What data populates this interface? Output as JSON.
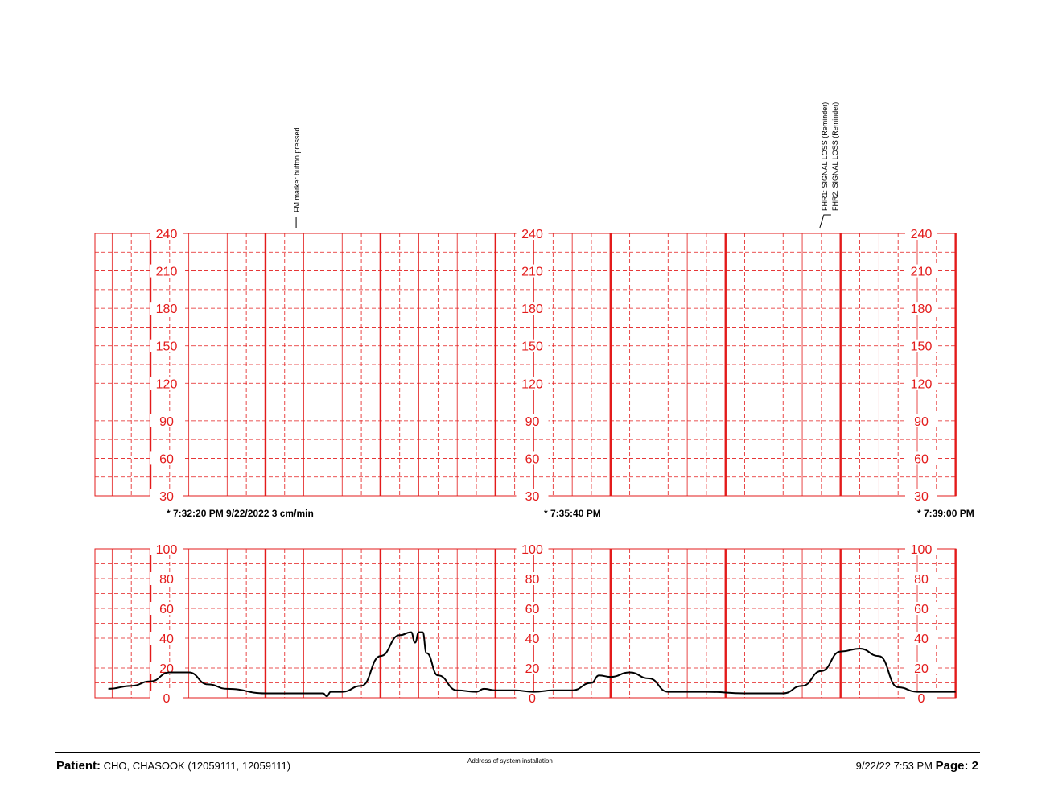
{
  "annotations": [
    {
      "text": "FM marker button pressed",
      "time": "7:33:36 PM"
    },
    {
      "text": "FHR1: SIGNAL LOSS (Reminder)",
      "time": "7:38:10 PM"
    },
    {
      "text": "FHR2: SIGNAL LOSS (Reminder)",
      "time": "7:38:10 PM"
    }
  ],
  "time_labels": [
    "* 7:32:20 PM  9/22/2022  3 cm/min",
    "* 7:35:40 PM",
    "* 7:39:00 PM"
  ],
  "footer": {
    "patient_label": "Patient:",
    "patient_value": "CHO, CHASOOK  (12059111, 12059111)",
    "address": "Address of system installation",
    "printed": "9/22/22 7:53 PM",
    "page_label": "Page: 2"
  },
  "colors": {
    "grid": "#e31b1b",
    "trace": "#000000",
    "text": "#000000"
  },
  "chart_data": [
    {
      "type": "line",
      "name": "fetal-heart-rate",
      "x_range": [
        "7:32:20 PM",
        "7:39:00 PM"
      ],
      "ylim": [
        30,
        240
      ],
      "yticks": [
        30,
        60,
        90,
        120,
        150,
        180,
        210,
        240
      ],
      "grid": true,
      "series": []
    },
    {
      "type": "line",
      "name": "uterine-activity",
      "x_range": [
        "7:32:20 PM",
        "7:39:00 PM"
      ],
      "ylim": [
        0,
        100
      ],
      "yticks": [
        0,
        20,
        40,
        60,
        80,
        100
      ],
      "grid": true,
      "series": [
        {
          "x": [
            "7:31:58 PM",
            "7:32:10 PM",
            "7:32:20 PM",
            "7:32:30 PM",
            "7:32:40 PM",
            "7:32:50 PM",
            "7:33:00 PM",
            "7:33:20 PM",
            "7:33:30 PM",
            "7:33:40 PM",
            "7:33:50 PM",
            "7:33:52 PM",
            "7:33:54 PM",
            "7:34:00 PM",
            "7:34:10 PM",
            "7:34:20 PM",
            "7:34:30 PM",
            "7:34:36 PM",
            "7:34:38 PM",
            "7:34:40 PM",
            "7:34:42 PM",
            "7:34:44 PM",
            "7:34:50 PM",
            "7:35:00 PM",
            "7:35:10 PM",
            "7:35:14 PM",
            "7:35:20 PM",
            "7:35:30 PM",
            "7:35:40 PM",
            "7:35:50 PM",
            "7:36:00 PM",
            "7:36:10 PM",
            "7:36:14 PM",
            "7:36:20 PM",
            "7:36:30 PM",
            "7:36:40 PM",
            "7:36:50 PM",
            "7:37:10 PM",
            "7:37:30 PM",
            "7:37:50 PM",
            "7:38:00 PM",
            "7:38:10 PM",
            "7:38:20 PM",
            "7:38:30 PM",
            "7:38:40 PM",
            "7:38:50 PM",
            "7:39:00 PM",
            "7:39:20 PM"
          ],
          "values": [
            6,
            8,
            11,
            17,
            17,
            9,
            6,
            3,
            3,
            3,
            3,
            1,
            4,
            4,
            8,
            28,
            42,
            44,
            37,
            44,
            44,
            30,
            15,
            5,
            4,
            6,
            5,
            5,
            4,
            5,
            5,
            10,
            15,
            14,
            17,
            13,
            4,
            4,
            3,
            3,
            8,
            18,
            31,
            33,
            28,
            7,
            4,
            4
          ]
        }
      ]
    }
  ]
}
